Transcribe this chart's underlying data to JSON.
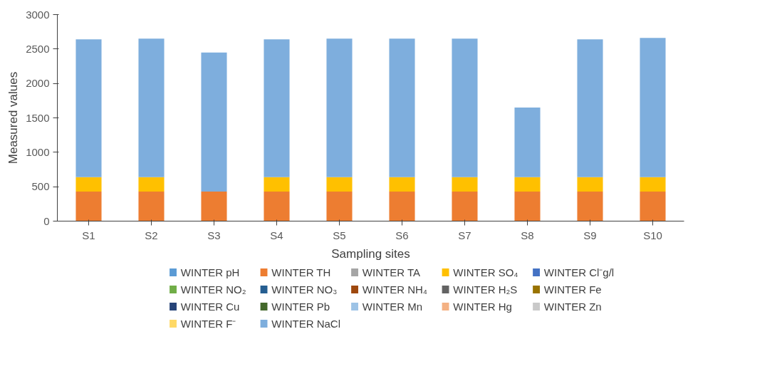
{
  "chart_data": {
    "type": "bar",
    "stacked": true,
    "xlabel": "Sampling sites",
    "ylabel": "Measured values",
    "categories": [
      "S1",
      "S2",
      "S3",
      "S4",
      "S5",
      "S6",
      "S7",
      "S8",
      "S9",
      "S10"
    ],
    "ylim": [
      0,
      3000
    ],
    "yticks": [
      0,
      500,
      1000,
      1500,
      2000,
      2500,
      3000
    ],
    "legend": "bottom",
    "series": [
      {
        "name": "WINTER pH",
        "color": "#5b9bd5",
        "values": [
          0,
          0,
          0,
          0,
          0,
          0,
          0,
          0,
          0,
          0
        ]
      },
      {
        "name": "WINTER TH",
        "color": "#ed7d31",
        "values": [
          430,
          430,
          430,
          430,
          430,
          430,
          430,
          430,
          430,
          430
        ]
      },
      {
        "name": "WINTER TA",
        "color": "#a5a5a5",
        "values": [
          0,
          0,
          0,
          0,
          0,
          0,
          0,
          0,
          0,
          0
        ]
      },
      {
        "name": "WINTER SO₄",
        "color": "#ffc000",
        "values": [
          210,
          210,
          0,
          210,
          210,
          210,
          210,
          210,
          210,
          210
        ]
      },
      {
        "name": "WINTER Cl⁻g/l",
        "color": "#4472c4",
        "values": [
          0,
          0,
          0,
          0,
          0,
          0,
          0,
          0,
          0,
          0
        ]
      },
      {
        "name": "WINTER NO₂",
        "color": "#70ad47",
        "values": [
          0,
          0,
          0,
          0,
          0,
          0,
          0,
          0,
          0,
          0
        ]
      },
      {
        "name": "WINTER NO₃",
        "color": "#255e91",
        "values": [
          0,
          0,
          0,
          0,
          0,
          0,
          0,
          0,
          0,
          0
        ]
      },
      {
        "name": "WINTER NH₄",
        "color": "#9e480e",
        "values": [
          0,
          0,
          0,
          0,
          0,
          0,
          0,
          0,
          0,
          0
        ]
      },
      {
        "name": "WINTER H₂S",
        "color": "#636363",
        "values": [
          0,
          0,
          0,
          0,
          0,
          0,
          0,
          0,
          0,
          0
        ]
      },
      {
        "name": "WINTER Fe",
        "color": "#997300",
        "values": [
          0,
          0,
          0,
          0,
          0,
          0,
          0,
          0,
          0,
          0
        ]
      },
      {
        "name": "WINTER Cu",
        "color": "#264478",
        "values": [
          0,
          0,
          0,
          0,
          0,
          0,
          0,
          0,
          0,
          0
        ]
      },
      {
        "name": "WINTER Pb",
        "color": "#43682b",
        "values": [
          0,
          0,
          0,
          0,
          0,
          0,
          0,
          0,
          0,
          0
        ]
      },
      {
        "name": "WINTER Mn",
        "color": "#9dc3e6",
        "values": [
          0,
          0,
          0,
          0,
          0,
          0,
          0,
          0,
          0,
          0
        ]
      },
      {
        "name": "WINTER Hg",
        "color": "#f4b183",
        "values": [
          0,
          0,
          0,
          0,
          0,
          0,
          0,
          0,
          0,
          0
        ]
      },
      {
        "name": "WINTER Zn",
        "color": "#c9c9c9",
        "values": [
          0,
          0,
          0,
          0,
          0,
          0,
          0,
          0,
          0,
          0
        ]
      },
      {
        "name": "WINTER F⁻",
        "color": "#ffd966",
        "values": [
          0,
          0,
          0,
          0,
          0,
          0,
          0,
          0,
          0,
          0
        ]
      },
      {
        "name": "WINTER NaCl",
        "color": "#7eaedd",
        "values": [
          2000,
          2010,
          2020,
          2000,
          2010,
          2010,
          2010,
          1010,
          2000,
          2020
        ]
      }
    ]
  }
}
